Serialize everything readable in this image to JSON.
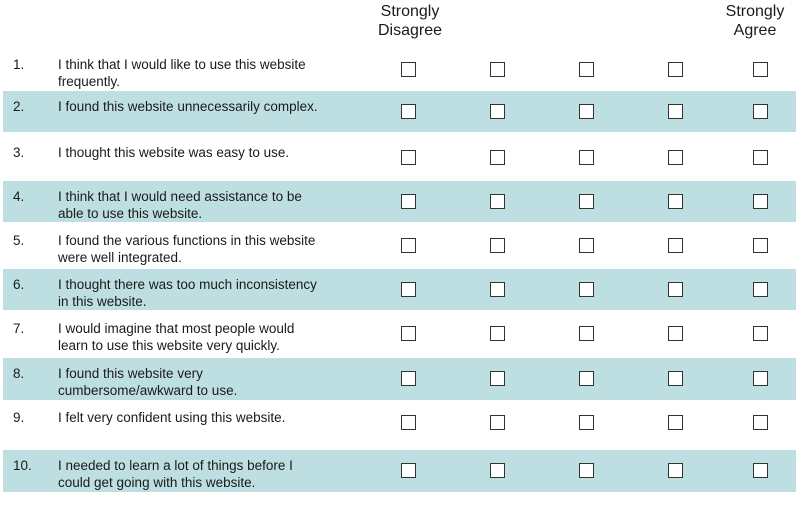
{
  "scale": {
    "left_label": "Strongly\nDisagree",
    "right_label": "Strongly\nAgree"
  },
  "items": [
    {
      "num": "1.",
      "text": "I think that I would like to use this website\nfrequently."
    },
    {
      "num": "2.",
      "text": "I found this website unnecessarily complex."
    },
    {
      "num": "3.",
      "text": "I thought this website was easy to use."
    },
    {
      "num": "4.",
      "text": "I think that I would need assistance to be\nable to use this website."
    },
    {
      "num": "5.",
      "text": "I found the various functions in this website\nwere well integrated."
    },
    {
      "num": "6.",
      "text": "I thought there was too much inconsistency\nin this website."
    },
    {
      "num": "7.",
      "text": "I would imagine that most people would\nlearn to use this website very quickly."
    },
    {
      "num": "8.",
      "text": "I found this website very\ncumbersome/awkward to use."
    },
    {
      "num": "9.",
      "text": "I felt very confident using this website."
    },
    {
      "num": "10.",
      "text": "I needed to learn a lot of things before I\ncould get going with this website."
    }
  ]
}
